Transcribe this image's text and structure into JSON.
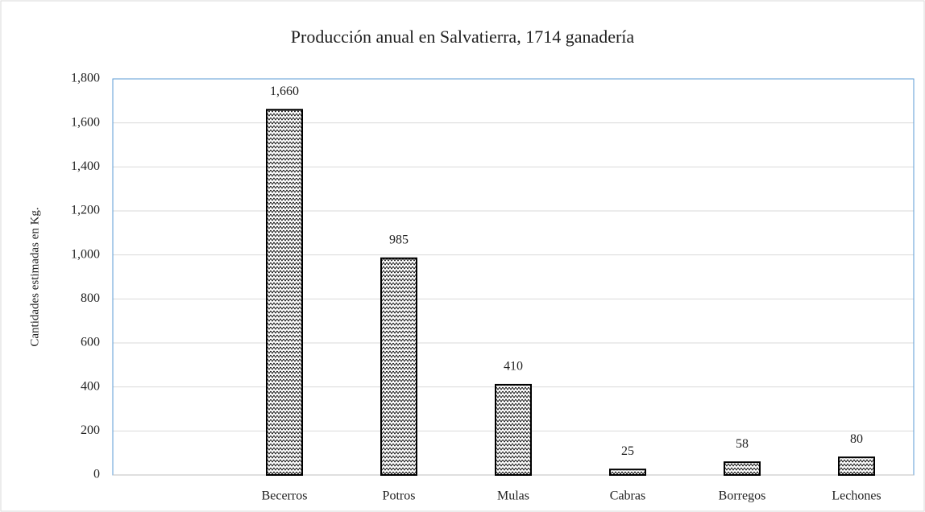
{
  "chart_data": {
    "type": "bar",
    "title": "Producción anual en Salvatierra, 1714 ganadería",
    "y_label": "Cantidades estimadas en Kg.",
    "categories": [
      null,
      "Becerros",
      "Potros",
      "Mulas",
      "Cabras",
      "Borregos",
      "Lechones"
    ],
    "values": [
      null,
      1660,
      985,
      410,
      25,
      58,
      80
    ],
    "value_labels": [
      null,
      "1,660",
      "985",
      "410",
      "25",
      "58",
      "80"
    ],
    "color": "#000000",
    "ylim": [
      0,
      1800
    ],
    "yticks": [
      0,
      200,
      400,
      600,
      800,
      {
        "value": 1000,
        "label": "1,000"
      },
      {
        "value": 1200,
        "label": "1,200"
      },
      {
        "value": 1400,
        "label": "1,400"
      },
      {
        "value": 1600,
        "label": "1,600"
      },
      {
        "value": 1800,
        "label": "1,800"
      }
    ],
    "grid": true
  }
}
